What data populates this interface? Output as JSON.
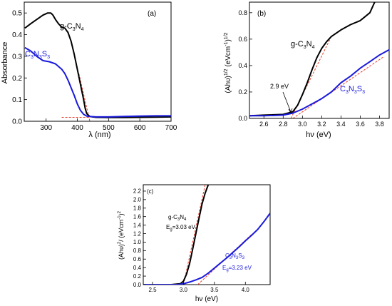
{
  "chart_data": [
    {
      "type": "line",
      "panel_label": "(a)",
      "xlabel": "λ (nm)",
      "ylabel": "Absorbance",
      "xlim": [
        230,
        700
      ],
      "ylim": [
        0,
        0.55
      ],
      "xticks": [
        300,
        400,
        500,
        600,
        700
      ],
      "yticks": [
        0.0,
        0.1,
        0.2,
        0.3,
        0.4,
        0.5
      ],
      "series": [
        {
          "name_main": "g-C",
          "name_sub1": "3",
          "name_mid": "N",
          "name_sub2": "4",
          "color": "#000000",
          "x": [
            232,
            250,
            270,
            290,
            305,
            315,
            322,
            330,
            340,
            350,
            360,
            370,
            380,
            390,
            400,
            410,
            420,
            425,
            430,
            440,
            460,
            500,
            550,
            600,
            650,
            700
          ],
          "y": [
            0.43,
            0.45,
            0.47,
            0.49,
            0.5,
            0.5,
            0.49,
            0.47,
            0.45,
            0.435,
            0.43,
            0.41,
            0.37,
            0.31,
            0.24,
            0.17,
            0.1,
            0.06,
            0.035,
            0.022,
            0.018,
            0.017,
            0.017,
            0.018,
            0.019,
            0.02
          ]
        },
        {
          "name_main": "C",
          "name_sub1": "3",
          "name_mid": "N",
          "name_sub2": "3",
          "name_end": "S",
          "name_sub3": "3",
          "color": "#1a1adc",
          "x": [
            232,
            250,
            270,
            290,
            310,
            330,
            350,
            360,
            370,
            380,
            390,
            400,
            410,
            420,
            430,
            440,
            460,
            500,
            550,
            600,
            650,
            700
          ],
          "y": [
            0.34,
            0.325,
            0.3,
            0.28,
            0.275,
            0.265,
            0.24,
            0.22,
            0.19,
            0.155,
            0.12,
            0.08,
            0.05,
            0.032,
            0.024,
            0.022,
            0.02,
            0.02,
            0.022,
            0.024,
            0.025,
            0.025
          ]
        }
      ],
      "fit_lines": [
        {
          "x": [
            350,
            440
          ],
          "y": [
            0.018,
            0.018
          ]
        },
        {
          "x": [
            405,
            440
          ],
          "y": [
            0.22,
            0.0
          ]
        }
      ],
      "grid": false
    },
    {
      "type": "line",
      "panel_label": "(b)",
      "xlabel": "hν (eV)",
      "ylabel": "(Ahυ)1/2 (eVcm-1)1/2",
      "xlim": [
        2.45,
        3.9
      ],
      "ylim": [
        0,
        0.88
      ],
      "xticks": [
        2.6,
        2.8,
        3.0,
        3.2,
        3.4,
        3.6,
        3.8
      ],
      "yticks": [
        0.0,
        0.2,
        0.4,
        0.6,
        0.8
      ],
      "annotation": "2.9 eV",
      "series": [
        {
          "name_main": "g-C",
          "name_sub1": "3",
          "name_mid": "N",
          "name_sub2": "4",
          "color": "#000000",
          "x": [
            2.45,
            2.6,
            2.8,
            2.9,
            2.95,
            3.0,
            3.05,
            3.1,
            3.15,
            3.2,
            3.25,
            3.3,
            3.4,
            3.5,
            3.6,
            3.7,
            3.75
          ],
          "y": [
            0.02,
            0.025,
            0.03,
            0.05,
            0.1,
            0.18,
            0.27,
            0.37,
            0.46,
            0.53,
            0.58,
            0.62,
            0.67,
            0.71,
            0.74,
            0.8,
            0.88
          ]
        },
        {
          "name_main": "C",
          "name_sub1": "3",
          "name_mid": "N",
          "name_sub2": "3",
          "name_end": "S",
          "name_sub3": "3",
          "color": "#1a1adc",
          "x": [
            2.45,
            2.6,
            2.8,
            2.9,
            3.0,
            3.1,
            3.2,
            3.3,
            3.4,
            3.5,
            3.6,
            3.7,
            3.8,
            3.9
          ],
          "y": [
            0.02,
            0.02,
            0.025,
            0.04,
            0.07,
            0.11,
            0.15,
            0.2,
            0.27,
            0.32,
            0.38,
            0.43,
            0.48,
            0.52
          ]
        }
      ],
      "fit_lines": [
        {
          "x": [
            2.88,
            3.3
          ],
          "y": [
            0.0,
            0.62
          ]
        },
        {
          "x": [
            2.9,
            3.85
          ],
          "y": [
            0.0,
            0.47
          ]
        }
      ],
      "grid": false
    },
    {
      "type": "line",
      "panel_label": "(c)",
      "xlabel": "hν (eV)",
      "ylabel": "(Ahυ)2/ (eVcm-1)2",
      "xlim": [
        2.35,
        4.4
      ],
      "ylim": [
        0,
        2.35
      ],
      "xticks": [
        2.5,
        3.0,
        3.5,
        4.0
      ],
      "yticks": [
        0.0,
        0.2,
        0.4,
        0.6,
        0.8,
        1.0,
        1.2,
        1.4,
        1.6,
        1.8,
        2.0,
        2.2
      ],
      "series": [
        {
          "name_main": "g-C",
          "name_sub1": "3",
          "name_mid": "N",
          "name_sub2": "4",
          "eg_label": "E",
          "eg_sub": "g",
          "eg_value": "=3.03 eV",
          "color": "#000000",
          "x": [
            2.35,
            2.8,
            2.95,
            3.0,
            3.05,
            3.1,
            3.15,
            3.2,
            3.25,
            3.3,
            3.35,
            3.4
          ],
          "y": [
            0.0,
            0.0,
            0.02,
            0.08,
            0.25,
            0.5,
            0.85,
            1.2,
            1.55,
            1.9,
            2.15,
            2.35
          ]
        },
        {
          "name_main": "C",
          "name_sub1": "3",
          "name_mid": "N",
          "name_sub2": "3",
          "name_end": "S",
          "name_sub3": "3",
          "eg_label": "E",
          "eg_sub": "g",
          "eg_value": "=3.23 eV",
          "color": "#1a1adc",
          "x": [
            2.35,
            2.9,
            3.0,
            3.1,
            3.2,
            3.3,
            3.4,
            3.5,
            3.6,
            3.7,
            3.8,
            3.9,
            4.0,
            4.1,
            4.2,
            4.3,
            4.4
          ],
          "y": [
            0.0,
            0.0,
            0.02,
            0.06,
            0.11,
            0.17,
            0.27,
            0.39,
            0.51,
            0.63,
            0.76,
            0.89,
            1.03,
            1.16,
            1.3,
            1.48,
            1.68
          ]
        }
      ],
      "fit_lines": [
        {
          "x": [
            3.0,
            3.35
          ],
          "y": [
            0.0,
            2.35
          ]
        },
        {
          "x": [
            3.23,
            4.1
          ],
          "y": [
            0.0,
            1.18
          ]
        }
      ],
      "grid": false
    }
  ]
}
